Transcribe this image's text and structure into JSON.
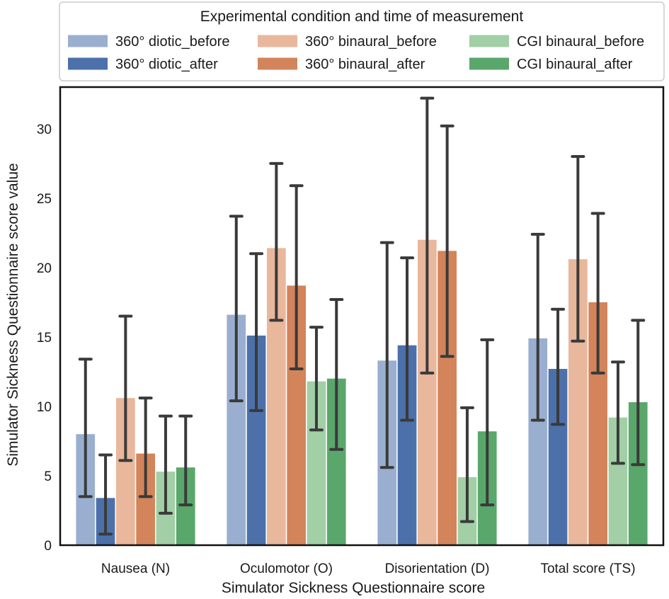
{
  "chart_data": {
    "type": "bar",
    "title": "",
    "xlabel": "Simulator Sickness Questionnaire score",
    "ylabel": "Simulator Sickness Questionnaire score value",
    "ylim": [
      0,
      33
    ],
    "yticks": [
      0,
      5,
      10,
      15,
      20,
      25,
      30
    ],
    "grid": false,
    "legend_title": "Experimental condition and time of measurement",
    "legend_position": "top-center",
    "categories": [
      "Nausea (N)",
      "Oculomotor (O)",
      "Disorientation (D)",
      "Total score (TS)"
    ],
    "series": [
      {
        "name": "360° diotic_before",
        "color": "#9aafcf",
        "values": [
          8.0,
          16.6,
          13.3,
          14.9
        ],
        "error_low": [
          3.5,
          10.4,
          5.6,
          9.0
        ],
        "error_high": [
          13.4,
          23.7,
          21.8,
          22.4
        ]
      },
      {
        "name": "360° diotic_after",
        "color": "#4c70aa",
        "values": [
          3.4,
          15.1,
          14.4,
          12.7
        ],
        "error_low": [
          0.8,
          9.7,
          9.0,
          8.7
        ],
        "error_high": [
          6.5,
          21.0,
          20.7,
          17.0
        ]
      },
      {
        "name": "360° binaural_before",
        "color": "#e9b79c",
        "values": [
          10.6,
          21.4,
          22.0,
          20.6
        ],
        "error_low": [
          6.1,
          16.2,
          12.4,
          14.7
        ],
        "error_high": [
          16.5,
          27.5,
          32.2,
          28.0
        ]
      },
      {
        "name": "360° binaural_after",
        "color": "#d3845a",
        "values": [
          6.6,
          18.7,
          21.2,
          17.5
        ],
        "error_low": [
          3.5,
          12.7,
          13.6,
          12.4
        ],
        "error_high": [
          10.6,
          25.9,
          30.2,
          23.9
        ]
      },
      {
        "name": "CGI binaural_before",
        "color": "#a2cfa6",
        "values": [
          5.3,
          11.8,
          4.9,
          9.2
        ],
        "error_low": [
          2.3,
          8.3,
          1.7,
          5.9
        ],
        "error_high": [
          9.3,
          15.7,
          9.9,
          13.2
        ]
      },
      {
        "name": "CGI binaural_after",
        "color": "#5aa76b",
        "values": [
          5.6,
          12.0,
          8.2,
          10.3
        ],
        "error_low": [
          2.9,
          6.9,
          2.9,
          5.8
        ],
        "error_high": [
          9.3,
          17.7,
          14.8,
          16.2
        ]
      }
    ]
  }
}
